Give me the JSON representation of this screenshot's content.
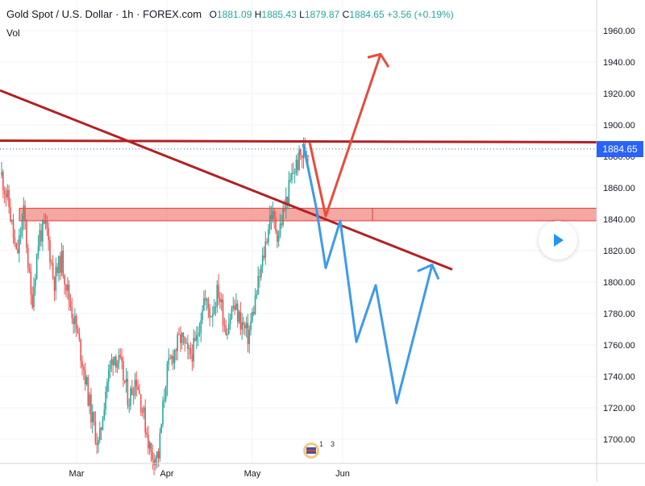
{
  "header": {
    "symbol": "Gold Spot / U.S. Dollar · 1h · FOREX.com",
    "open_label": "O",
    "open": "1881.09",
    "high_label": "H",
    "high": "1885.43",
    "low_label": "L",
    "low": "1879.87",
    "close_label": "C",
    "close": "1884.65",
    "change": "+3.56 (+0.19%)",
    "vol_label": "Vol"
  },
  "price_tag": "1884.65",
  "events": {
    "count_a": "1",
    "count_b": "3"
  },
  "chart_data": {
    "type": "candlestick",
    "symbol": "XAUUSD",
    "timeframe": "1h",
    "x_labels": [
      "Mar",
      "Apr",
      "May",
      "Jun"
    ],
    "y_ticks": [
      "1700.00",
      "1720.00",
      "1740.00",
      "1760.00",
      "1780.00",
      "1800.00",
      "1820.00",
      "1840.00",
      "1860.00",
      "1880.00",
      "1900.00",
      "1920.00",
      "1940.00",
      "1960.00"
    ],
    "ylim": [
      1685,
      1975
    ],
    "last_price": 1884.65,
    "price_path": [
      1868,
      1848,
      1815,
      1845,
      1785,
      1830,
      1835,
      1800,
      1815,
      1790,
      1770,
      1745,
      1715,
      1695,
      1735,
      1755,
      1745,
      1725,
      1740,
      1715,
      1690,
      1690,
      1740,
      1755,
      1765,
      1752,
      1760,
      1790,
      1780,
      1795,
      1770,
      1785,
      1775,
      1765,
      1790,
      1815,
      1845,
      1830,
      1850,
      1870,
      1880,
      1884.65
    ],
    "support_zone": [
      1839,
      1847
    ],
    "horizontal_resistance": [
      1890,
      1889
    ],
    "descending_trendline": [
      1922,
      1808
    ],
    "bullish_scenario": [
      1889,
      1842,
      1945
    ],
    "bearish_scenario": [
      1888,
      1840,
      1809,
      1839,
      1762,
      1798,
      1723,
      1811
    ],
    "colors": {
      "candle_up": "#26a69a",
      "candle_down": "#ef5350",
      "trendline": "#b22222",
      "bullish_arrow": "#e74c3c",
      "bearish_arrow": "#3d9be9",
      "zone_fill": "#f28b82",
      "price_tag": "#2962ff"
    }
  }
}
